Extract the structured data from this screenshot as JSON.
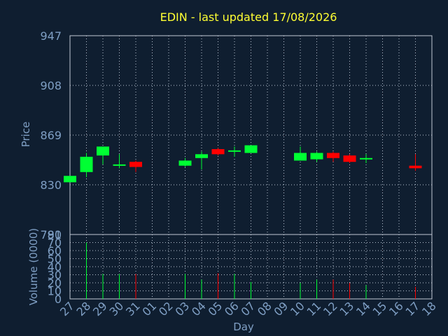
{
  "chart_data": [
    {
      "type": "candlestick",
      "title": "EDIN - last updated 17/08/2026",
      "ylabel": "Price",
      "xlabel": "",
      "ylim": [
        791,
        947
      ],
      "yticks": [
        "947",
        "908",
        "869",
        "830",
        "791"
      ],
      "grid": true,
      "colors": {
        "up": "#00ff33",
        "down": "#ff0000",
        "title": "#ffff33",
        "axis_text": "#7f9fc4"
      },
      "x": [
        "27",
        "28",
        "29",
        "30",
        "31",
        "01",
        "02",
        "03",
        "04",
        "05",
        "06",
        "07",
        "08",
        "09",
        "10",
        "11",
        "12",
        "13",
        "14",
        "15",
        "16",
        "17",
        "18"
      ],
      "candles": [
        {
          "day": "27",
          "open": 832,
          "high": 837,
          "low": 832,
          "close": 837
        },
        {
          "day": "28",
          "open": 840,
          "high": 855,
          "low": 836,
          "close": 852
        },
        {
          "day": "29",
          "open": 853,
          "high": 860,
          "low": 846,
          "close": 860
        },
        {
          "day": "30",
          "open": 845,
          "high": 854,
          "low": 843,
          "close": 846
        },
        {
          "day": "31",
          "open": 848,
          "high": 849,
          "low": 840,
          "close": 844
        },
        {
          "day": "03",
          "open": 845,
          "high": 851,
          "low": 844,
          "close": 849
        },
        {
          "day": "04",
          "open": 851,
          "high": 856,
          "low": 842,
          "close": 854
        },
        {
          "day": "05",
          "open": 858,
          "high": 859,
          "low": 853,
          "close": 854
        },
        {
          "day": "06",
          "open": 856,
          "high": 860,
          "low": 852,
          "close": 857
        },
        {
          "day": "07",
          "open": 855,
          "high": 861,
          "low": 855,
          "close": 861
        },
        {
          "day": "10",
          "open": 849,
          "high": 860,
          "low": 849,
          "close": 855
        },
        {
          "day": "11",
          "open": 850,
          "high": 856,
          "low": 848,
          "close": 855
        },
        {
          "day": "12",
          "open": 855,
          "high": 856,
          "low": 848,
          "close": 851
        },
        {
          "day": "13",
          "open": 853,
          "high": 854,
          "low": 847,
          "close": 848
        },
        {
          "day": "14",
          "open": 850,
          "high": 854,
          "low": 847,
          "close": 851
        },
        {
          "day": "17",
          "open": 845,
          "high": 854,
          "low": 841,
          "close": 843
        }
      ]
    },
    {
      "type": "bar",
      "ylabel": "Volume (0000)",
      "xlabel": "Day",
      "ylim": [
        0,
        80
      ],
      "yticks": [
        "80",
        "70",
        "60",
        "50",
        "40",
        "30",
        "20",
        "10",
        "0"
      ],
      "grid": true,
      "categories": [
        "27",
        "28",
        "29",
        "30",
        "31",
        "01",
        "02",
        "03",
        "04",
        "05",
        "06",
        "07",
        "08",
        "09",
        "10",
        "11",
        "12",
        "13",
        "14",
        "15",
        "16",
        "17",
        "18"
      ],
      "bars": [
        {
          "day": "28",
          "value": 70,
          "direction": "up"
        },
        {
          "day": "29",
          "value": 31,
          "direction": "up"
        },
        {
          "day": "30",
          "value": 31,
          "direction": "up"
        },
        {
          "day": "31",
          "value": 31,
          "direction": "down"
        },
        {
          "day": "03",
          "value": 31,
          "direction": "up"
        },
        {
          "day": "04",
          "value": 24,
          "direction": "up"
        },
        {
          "day": "05",
          "value": 32,
          "direction": "down"
        },
        {
          "day": "06",
          "value": 31,
          "direction": "up"
        },
        {
          "day": "07",
          "value": 21,
          "direction": "up"
        },
        {
          "day": "10",
          "value": 20,
          "direction": "up"
        },
        {
          "day": "11",
          "value": 24,
          "direction": "up"
        },
        {
          "day": "12",
          "value": 24,
          "direction": "down"
        },
        {
          "day": "13",
          "value": 20,
          "direction": "down"
        },
        {
          "day": "14",
          "value": 17,
          "direction": "up"
        },
        {
          "day": "17",
          "value": 15,
          "direction": "down"
        }
      ]
    }
  ]
}
